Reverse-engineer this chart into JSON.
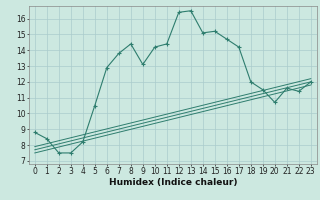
{
  "xlabel": "Humidex (Indice chaleur)",
  "background_color": "#cce8e0",
  "plot_bg_color": "#cce8e0",
  "grid_color": "#aacccc",
  "line_color": "#2e7d6e",
  "spine_color": "#888888",
  "xlim": [
    -0.5,
    23.5
  ],
  "ylim": [
    6.8,
    16.8
  ],
  "yticks": [
    7,
    8,
    9,
    10,
    11,
    12,
    13,
    14,
    15,
    16
  ],
  "xticks": [
    0,
    1,
    2,
    3,
    4,
    5,
    6,
    7,
    8,
    9,
    10,
    11,
    12,
    13,
    14,
    15,
    16,
    17,
    18,
    19,
    20,
    21,
    22,
    23
  ],
  "series1_x": [
    0,
    1,
    2,
    3,
    4,
    5,
    6,
    7,
    8,
    9,
    10,
    11,
    12,
    13,
    14,
    15,
    16,
    17,
    18,
    19,
    20,
    21,
    22,
    23
  ],
  "series1_y": [
    8.8,
    8.4,
    7.5,
    7.5,
    8.2,
    10.5,
    12.9,
    13.8,
    14.4,
    13.1,
    14.2,
    14.4,
    16.4,
    16.5,
    15.1,
    15.2,
    14.7,
    14.2,
    12.0,
    11.5,
    10.7,
    11.6,
    11.4,
    12.0
  ],
  "series2_x": [
    0,
    23
  ],
  "series2_y": [
    7.5,
    11.8
  ],
  "series3_x": [
    0,
    23
  ],
  "series3_y": [
    7.7,
    12.0
  ],
  "series4_x": [
    0,
    23
  ],
  "series4_y": [
    7.9,
    12.2
  ],
  "xlabel_fontsize": 6.5,
  "tick_fontsize": 5.5,
  "xlabel_bold": true
}
